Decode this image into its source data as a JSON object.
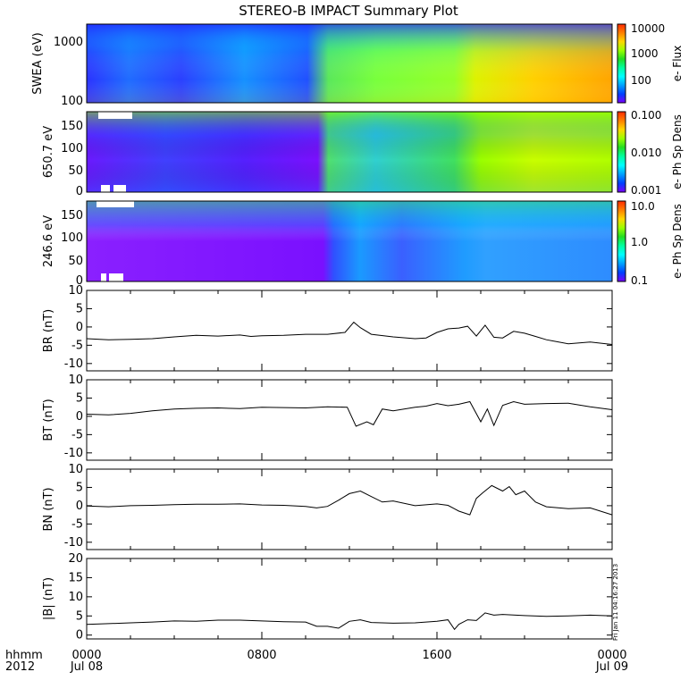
{
  "title": "STEREO-B IMPACT Summary Plot",
  "time_axis": {
    "corner_labels": [
      "hhmm",
      "2012"
    ],
    "ticks": [
      {
        "hhmm": "0000",
        "date": "Jul 08",
        "hours": 0
      },
      {
        "hhmm": "0800",
        "date": "",
        "hours": 8
      },
      {
        "hhmm": "1600",
        "date": "",
        "hours": 16
      },
      {
        "hhmm": "0000",
        "date": "Jul 09",
        "hours": 24
      }
    ],
    "range_hours": [
      0,
      24
    ]
  },
  "footer_stamp": "Fri Jan 11 04:16:27 2013",
  "spectrogram_panels": [
    {
      "ylabel": "SWEA (eV)",
      "yticks": [
        "1000",
        "100"
      ],
      "colorbar_label": "e- Flux",
      "colorbar_ticks": [
        "10000",
        "1000",
        "100"
      ],
      "colormap": "rainbow",
      "yscale": "log"
    },
    {
      "ylabel": "650.7 eV",
      "yticks": [
        "150",
        "100",
        "50",
        "0"
      ],
      "colorbar_label": "e- Ph Sp Dens",
      "colorbar_ticks": [
        "0.100",
        "0.010",
        "0.001"
      ],
      "colormap": "rainbow",
      "yscale": "linear"
    },
    {
      "ylabel": "246.6 eV",
      "yticks": [
        "150",
        "100",
        "50",
        "0"
      ],
      "colorbar_label": "e- Ph Sp Dens",
      "colorbar_ticks": [
        "10.0",
        "1.0",
        "0.1"
      ],
      "colormap": "rainbow",
      "yscale": "linear"
    }
  ],
  "colorbar_colors": [
    "#ff2a00",
    "#ff7f00",
    "#ffd700",
    "#9aff00",
    "#22dd22",
    "#00ffa0",
    "#00ffff",
    "#00a0ff",
    "#0040ff",
    "#7a00ff"
  ],
  "chart_data": [
    {
      "type": "line",
      "ylabel": "BR (nT)",
      "ylim": [
        -12,
        10
      ],
      "ytick_labels": [
        "10",
        "5",
        "0",
        "-5",
        "-10"
      ],
      "x": [
        0,
        1,
        2,
        3,
        4,
        5,
        6,
        7,
        7.5,
        8,
        9,
        10,
        11,
        11.8,
        12.2,
        12.5,
        13,
        14,
        15,
        15.5,
        16,
        16.5,
        17,
        17.4,
        17.8,
        18.2,
        18.6,
        19,
        19.5,
        20,
        20.5,
        21,
        22,
        23,
        24
      ],
      "y": [
        -3.2,
        -3.5,
        -3.4,
        -3.2,
        -2.7,
        -2.3,
        -2.5,
        -2.2,
        -2.6,
        -2.4,
        -2.3,
        -2.0,
        -2.0,
        -1.5,
        1.3,
        -0.2,
        -2.0,
        -2.7,
        -3.2,
        -3.0,
        -1.5,
        -0.5,
        -0.3,
        0.2,
        -2.5,
        0.5,
        -2.8,
        -3.0,
        -1.2,
        -1.7,
        -2.6,
        -3.5,
        -4.6,
        -4.1,
        -4.8
      ]
    },
    {
      "type": "line",
      "ylabel": "BT (nT)",
      "ylim": [
        -12,
        10
      ],
      "ytick_labels": [
        "10",
        "5",
        "0",
        "-5",
        "-10"
      ],
      "x": [
        0,
        1,
        2,
        3,
        4,
        5,
        6,
        7,
        8,
        9,
        10,
        11,
        11.9,
        12.3,
        12.8,
        13.1,
        13.5,
        14,
        15,
        15.5,
        16,
        16.5,
        17,
        17.5,
        18,
        18.3,
        18.6,
        19,
        19.5,
        20,
        21,
        22,
        23,
        24
      ],
      "y": [
        0.6,
        0.4,
        0.8,
        1.5,
        2.0,
        2.2,
        2.3,
        2.1,
        2.5,
        2.4,
        2.3,
        2.6,
        2.5,
        -2.7,
        -1.5,
        -2.3,
        2.0,
        1.5,
        2.5,
        2.8,
        3.5,
        2.9,
        3.3,
        4.0,
        -1.5,
        2.0,
        -2.5,
        3.0,
        4.0,
        3.3,
        3.5,
        3.6,
        2.6,
        1.8
      ]
    },
    {
      "type": "line",
      "ylabel": "BN (nT)",
      "ylim": [
        -12,
        10
      ],
      "ytick_labels": [
        "10",
        "5",
        "0",
        "-5",
        "-10"
      ],
      "x": [
        0,
        1,
        2,
        3,
        4,
        5,
        6,
        7,
        8,
        9,
        10,
        10.5,
        11,
        11.5,
        12,
        12.5,
        13,
        13.5,
        14,
        15,
        16,
        16.5,
        17,
        17.5,
        17.8,
        18.1,
        18.5,
        19,
        19.3,
        19.6,
        20,
        20.5,
        21,
        22,
        23,
        24
      ],
      "y": [
        -0.1,
        -0.3,
        0.0,
        0.1,
        0.3,
        0.4,
        0.4,
        0.5,
        0.2,
        0.1,
        -0.2,
        -0.6,
        -0.2,
        1.5,
        3.3,
        4.0,
        2.5,
        1.0,
        1.3,
        0.0,
        0.5,
        0.1,
        -1.5,
        -2.5,
        2.0,
        3.6,
        5.5,
        4.0,
        5.2,
        3.0,
        4.0,
        1.0,
        -0.3,
        -0.8,
        -0.6,
        -2.5
      ]
    },
    {
      "type": "line",
      "ylabel": "|B| (nT)",
      "ylim": [
        -1,
        20
      ],
      "ytick_labels": [
        "20",
        "15",
        "10",
        "5",
        "0"
      ],
      "x": [
        0,
        1,
        2,
        3,
        4,
        5,
        6,
        7,
        8,
        9,
        10,
        10.5,
        11,
        11.5,
        12,
        12.5,
        13,
        14,
        15,
        16,
        16.5,
        16.8,
        17,
        17.4,
        17.8,
        18.2,
        18.6,
        19,
        20,
        21,
        22,
        23,
        24
      ],
      "y": [
        2.8,
        3.0,
        3.2,
        3.4,
        3.7,
        3.6,
        3.9,
        3.9,
        3.7,
        3.5,
        3.4,
        2.3,
        2.3,
        1.8,
        3.6,
        4.0,
        3.3,
        3.1,
        3.2,
        3.6,
        4.0,
        1.5,
        2.8,
        4.0,
        3.8,
        5.8,
        5.2,
        5.4,
        5.1,
        4.9,
        5.0,
        5.2,
        5.0
      ]
    }
  ]
}
